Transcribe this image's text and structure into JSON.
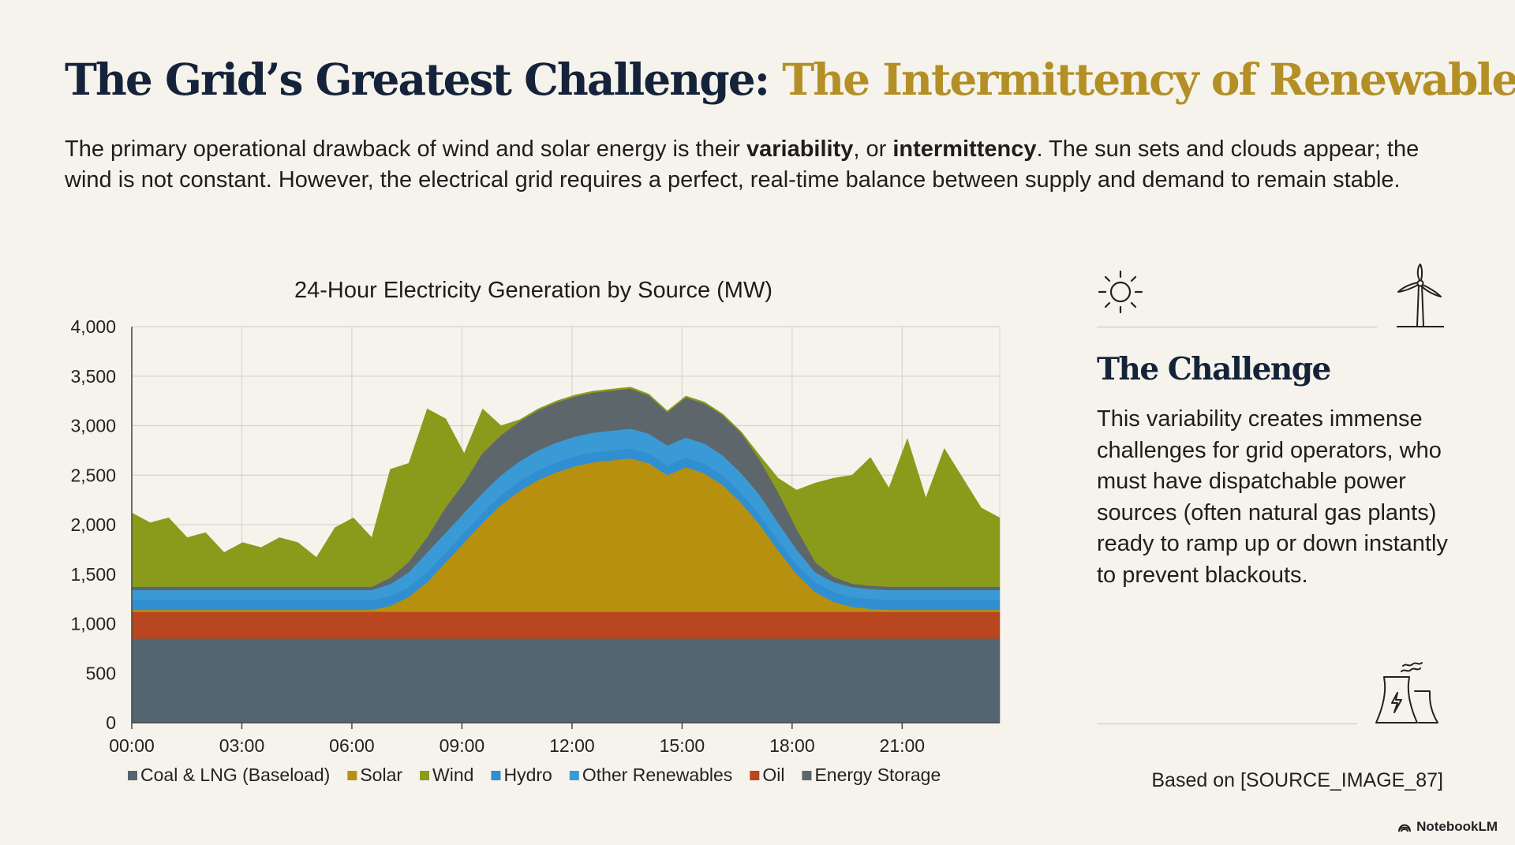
{
  "header": {
    "title_main": "The Grid’s Greatest Challenge:",
    "title_accent": "The Intermittency of Renewables",
    "intro": {
      "part1": "The primary operational drawback of wind and solar energy is their ",
      "bold1": "variability",
      "part2": ", or ",
      "bold2": "intermittency",
      "part3": ". The sun sets and clouds appear; the wind is not constant. However, the electrical grid requires a perfect, real-time balance between supply and demand to remain stable."
    }
  },
  "chart_data": {
    "type": "area",
    "stacked": true,
    "title": "24-Hour Electricity Generation by Source (MW)",
    "xlabel": "",
    "ylabel": "",
    "xlim": [
      0,
      23.5
    ],
    "ylim": [
      0,
      4000
    ],
    "grid": true,
    "legend_position": "bottom",
    "x_ticks": [
      "00:00",
      "03:00",
      "06:00",
      "09:00",
      "12:00",
      "15:00",
      "18:00",
      "21:00"
    ],
    "y_ticks": [
      "0",
      "500",
      "1,000",
      "1,500",
      "2,000",
      "2,500",
      "3,000",
      "3,500",
      "4,000"
    ],
    "x_hours": [
      0,
      0.5,
      1,
      1.5,
      2,
      2.5,
      3,
      3.5,
      4,
      4.5,
      5,
      5.5,
      6,
      6.5,
      7,
      7.5,
      8,
      8.5,
      9,
      9.5,
      10,
      10.5,
      11,
      11.5,
      12,
      12.5,
      13,
      13.5,
      14,
      14.5,
      15,
      15.5,
      16,
      16.5,
      17,
      17.5,
      18,
      18.5,
      19,
      19.5,
      20,
      20.5,
      21,
      21.5,
      22,
      22.5,
      23,
      23.5
    ],
    "series": [
      {
        "name": "Coal & LNG (Baseload)",
        "color": "#536570",
        "values": [
          850,
          850,
          850,
          850,
          850,
          850,
          850,
          850,
          850,
          850,
          850,
          850,
          850,
          850,
          850,
          850,
          850,
          850,
          850,
          850,
          850,
          850,
          850,
          850,
          850,
          850,
          850,
          850,
          850,
          850,
          850,
          850,
          850,
          850,
          850,
          850,
          850,
          850,
          850,
          850,
          850,
          850,
          850,
          850,
          850,
          850,
          850,
          850
        ]
      },
      {
        "name": "Oil",
        "color": "#b8461e",
        "values": [
          270,
          270,
          270,
          270,
          270,
          270,
          270,
          270,
          270,
          270,
          270,
          270,
          270,
          270,
          270,
          270,
          270,
          270,
          270,
          270,
          270,
          270,
          270,
          270,
          270,
          270,
          270,
          270,
          270,
          270,
          270,
          270,
          270,
          270,
          270,
          270,
          270,
          270,
          270,
          270,
          270,
          270,
          270,
          270,
          270,
          270,
          270,
          270
        ]
      },
      {
        "name": "Solar",
        "color": "#b8900f",
        "values": [
          20,
          20,
          20,
          20,
          20,
          20,
          20,
          20,
          20,
          20,
          20,
          20,
          20,
          20,
          60,
          150,
          300,
          500,
          700,
          900,
          1080,
          1220,
          1330,
          1410,
          1470,
          1510,
          1530,
          1550,
          1500,
          1380,
          1460,
          1400,
          1280,
          1100,
          880,
          620,
          380,
          200,
          100,
          50,
          30,
          20,
          20,
          20,
          20,
          20,
          20,
          20
        ]
      },
      {
        "name": "Hydro",
        "color": "#2f8fd0",
        "values": [
          100,
          100,
          100,
          100,
          100,
          100,
          100,
          100,
          100,
          100,
          100,
          100,
          100,
          100,
          100,
          100,
          100,
          100,
          100,
          100,
          100,
          100,
          100,
          100,
          100,
          100,
          100,
          100,
          100,
          100,
          100,
          100,
          100,
          100,
          100,
          100,
          100,
          100,
          100,
          100,
          100,
          100,
          100,
          100,
          100,
          100,
          100,
          100
        ]
      },
      {
        "name": "Other Renewables",
        "color": "#3a9ad6",
        "values": [
          100,
          100,
          100,
          100,
          100,
          100,
          100,
          100,
          100,
          100,
          100,
          100,
          100,
          100,
          120,
          150,
          200,
          200,
          200,
          200,
          200,
          200,
          200,
          200,
          200,
          200,
          200,
          200,
          200,
          200,
          200,
          200,
          200,
          200,
          200,
          180,
          150,
          100,
          100,
          100,
          100,
          100,
          100,
          100,
          100,
          100,
          100,
          100
        ]
      },
      {
        "name": "Energy Storage",
        "color": "#5d666b",
        "values": [
          30,
          30,
          30,
          30,
          30,
          30,
          30,
          30,
          30,
          30,
          30,
          30,
          30,
          30,
          60,
          100,
          150,
          250,
          300,
          400,
          400,
          400,
          400,
          400,
          400,
          400,
          400,
          400,
          380,
          330,
          400,
          400,
          400,
          400,
          350,
          300,
          200,
          100,
          50,
          30,
          30,
          30,
          30,
          30,
          30,
          30,
          30,
          30
        ]
      },
      {
        "name": "Wind",
        "color": "#8a9b1b",
        "values": [
          750,
          650,
          700,
          500,
          550,
          350,
          450,
          400,
          500,
          450,
          300,
          600,
          700,
          500,
          1100,
          1000,
          1300,
          900,
          300,
          450,
          100,
          20,
          20,
          20,
          20,
          20,
          20,
          20,
          20,
          20,
          20,
          20,
          20,
          20,
          50,
          150,
          400,
          800,
          1000,
          1100,
          1300,
          1000,
          1500,
          900,
          1400,
          1100,
          800,
          700
        ]
      }
    ]
  },
  "side": {
    "heading": "The Challenge",
    "body": "This variability creates immense challenges for grid operators, who must have dispatchable power sources (often natural gas plants) ready to ramp up or down instantly to prevent blackouts.",
    "icons": [
      "sun-icon",
      "wind-turbine-icon",
      "power-plant-icon"
    ]
  },
  "footer": {
    "source": "Based on [SOURCE_IMAGE_87]",
    "brand": "NotebookLM"
  }
}
